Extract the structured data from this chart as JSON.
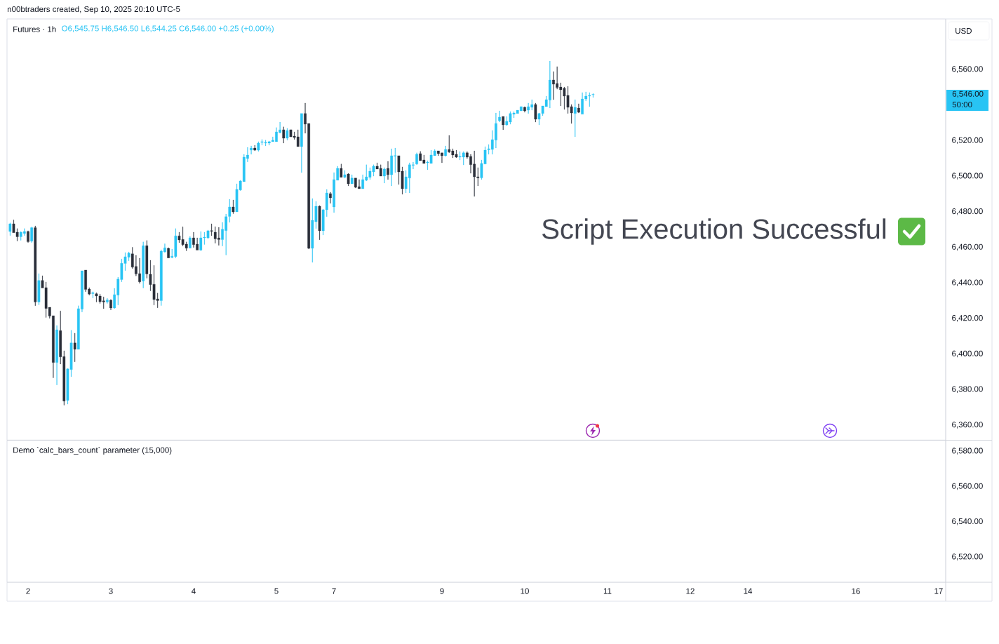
{
  "chart_data": [
    {
      "type": "candlestick",
      "title": "Futures · 1h",
      "subtitle": "O6,545.75 H6,546.50 L6,544.25 C6,546.00 +0.25 (+0.00%)",
      "ylabel": "USD",
      "annotations": [
        "n00btraders created, Sep 10, 2025 20:10 UTC-5",
        "Script Execution Successful",
        "6,546.00",
        "50:00"
      ],
      "categories": [
        null,
        null,
        null,
        null,
        null,
        "2",
        null,
        null,
        null,
        null,
        null,
        null,
        null,
        null,
        null,
        null,
        null,
        null,
        null,
        null,
        null,
        null,
        null,
        null,
        null,
        null,
        null,
        null,
        "3",
        null,
        null,
        null,
        null,
        null,
        null,
        null,
        null,
        null,
        null,
        null,
        null,
        null,
        null,
        null,
        null,
        null,
        null,
        null,
        null,
        null,
        null,
        "4",
        null,
        null,
        null,
        null,
        null,
        null,
        null,
        null,
        null,
        null,
        null,
        null,
        null,
        null,
        null,
        null,
        null,
        null,
        null,
        null,
        null,
        null,
        "5",
        null,
        null,
        null,
        null,
        null,
        null,
        null,
        null,
        null,
        null,
        null,
        null,
        null,
        null,
        null,
        "7",
        null,
        null,
        null,
        null,
        null,
        null,
        null,
        null,
        null,
        null,
        null,
        null,
        null,
        null,
        null,
        null,
        null,
        null,
        null,
        null,
        null,
        null,
        null,
        null,
        null,
        null,
        null,
        null,
        null,
        "9",
        null,
        null,
        null,
        null,
        null,
        null,
        null,
        null,
        null,
        null,
        null,
        null,
        null,
        null,
        null,
        null,
        null,
        null,
        null,
        null,
        null,
        null,
        "10",
        null,
        null,
        null,
        null,
        null,
        null,
        null,
        null,
        null,
        null,
        null,
        null,
        null,
        null,
        null,
        null,
        null,
        null,
        null,
        null,
        null,
        null,
        "11",
        null,
        null,
        null,
        null,
        null,
        null,
        null,
        null,
        null,
        null,
        null,
        null,
        null,
        null,
        null,
        null,
        null,
        null,
        null,
        null,
        null,
        null,
        "12",
        null,
        null,
        null,
        null,
        null,
        null,
        null,
        null,
        null,
        null,
        null,
        null,
        null,
        null,
        null,
        "14",
        null,
        null,
        null,
        null,
        null,
        null,
        null,
        null,
        null,
        null,
        null,
        null,
        null,
        null,
        null,
        null,
        null,
        null,
        null,
        null,
        null,
        null,
        null,
        null,
        null,
        null,
        null,
        null,
        null,
        "16",
        null,
        null,
        null,
        null,
        null,
        null,
        null,
        null,
        null,
        null,
        null,
        null,
        null,
        null,
        null,
        null,
        null,
        null,
        null,
        null,
        null,
        null,
        "17"
      ],
      "ohlc": [
        [
          6468.9,
          6473.7,
          6466.6,
          6473.2
        ],
        [
          6473.2,
          6475.4,
          6468.2,
          6468.2
        ],
        [
          6468.5,
          6470.5,
          6463.5,
          6465.9
        ],
        [
          6465.9,
          6468.9,
          6463.9,
          6468.5
        ],
        [
          6467.8,
          6470.5,
          6466.6,
          6468.9
        ],
        [
          6468.9,
          6469.3,
          6462.7,
          6463.1
        ],
        [
          6463.4,
          6471.4,
          6462.7,
          6471.0
        ],
        [
          6471.0,
          6472.0,
          6427.1,
          6429.2
        ],
        [
          6429.2,
          6445.2,
          6427.6,
          6441.3
        ],
        [
          6441.3,
          6444.0,
          6437.1,
          6437.1
        ],
        [
          6437.3,
          6440.5,
          6420.5,
          6425.6
        ],
        [
          6426.3,
          6426.3,
          6420.0,
          6421.3
        ],
        [
          6421.5,
          6421.5,
          6386.6,
          6395.2
        ],
        [
          6395.2,
          6416.0,
          6382.6,
          6413.6
        ],
        [
          6413.1,
          6424.2,
          6394.3,
          6398.3
        ],
        [
          6398.5,
          6401.8,
          6371.2,
          6373.5
        ],
        [
          6373.9,
          6391.8,
          6371.8,
          6391.6
        ],
        [
          6391.2,
          6413.3,
          6387.2,
          6406.2
        ],
        [
          6406.2,
          6411.7,
          6395.6,
          6402.6
        ],
        [
          6402.6,
          6427.1,
          6402.6,
          6425.5
        ],
        [
          6425.2,
          6446.8,
          6423.6,
          6446.8
        ],
        [
          6447.2,
          6447.2,
          6435.0,
          6436.3
        ],
        [
          6436.5,
          6437.3,
          6433.1,
          6433.7
        ],
        [
          6434.0,
          6435.0,
          6431.5,
          6434.4
        ],
        [
          6433.9,
          6434.4,
          6429.2,
          6432.6
        ],
        [
          6432.6,
          6433.7,
          6428.4,
          6429.4
        ],
        [
          6429.9,
          6432.1,
          6425.5,
          6429.2
        ],
        [
          6429.2,
          6431.3,
          6428.4,
          6430.4
        ],
        [
          6430.2,
          6430.7,
          6424.8,
          6425.9
        ],
        [
          6425.9,
          6436.9,
          6425.5,
          6433.4
        ],
        [
          6433.1,
          6443.2,
          6427.5,
          6442.1
        ],
        [
          6441.8,
          6453.4,
          6440.6,
          6451.0
        ],
        [
          6450.9,
          6457.0,
          6446.9,
          6454.7
        ],
        [
          6454.4,
          6457.4,
          6452.4,
          6456.7
        ],
        [
          6456.3,
          6460.0,
          6448.1,
          6448.8
        ],
        [
          6449.2,
          6455.5,
          6443.9,
          6445.0
        ],
        [
          6445.2,
          6453.9,
          6439.7,
          6440.6
        ],
        [
          6441.0,
          6463.0,
          6437.1,
          6460.9
        ],
        [
          6460.9,
          6463.8,
          6442.6,
          6445.0
        ],
        [
          6444.8,
          6452.7,
          6435.5,
          6439.0
        ],
        [
          6439.2,
          6449.8,
          6427.5,
          6430.6
        ],
        [
          6431.0,
          6434.2,
          6426.0,
          6430.0
        ],
        [
          6430.0,
          6458.6,
          6427.2,
          6457.8
        ],
        [
          6457.4,
          6462.0,
          6457.0,
          6459.7
        ],
        [
          6459.4,
          6459.8,
          6454.0,
          6454.0
        ],
        [
          6454.3,
          6459.0,
          6453.9,
          6455.0
        ],
        [
          6454.8,
          6470.5,
          6454.0,
          6466.4
        ],
        [
          6466.4,
          6468.5,
          6462.6,
          6464.1
        ],
        [
          6464.4,
          6471.5,
          6460.7,
          6461.5
        ],
        [
          6461.8,
          6463.0,
          6458.0,
          6459.5
        ],
        [
          6459.5,
          6466.1,
          6459.5,
          6465.3
        ],
        [
          6465.3,
          6468.5,
          6459.9,
          6461.5
        ],
        [
          6461.8,
          6465.3,
          6458.4,
          6458.4
        ],
        [
          6458.4,
          6468.9,
          6458.0,
          6465.3
        ],
        [
          6465.3,
          6468.5,
          6461.6,
          6465.7
        ],
        [
          6465.3,
          6469.7,
          6464.7,
          6469.3
        ],
        [
          6469.4,
          6473.2,
          6466.5,
          6469.0
        ],
        [
          6468.5,
          6471.6,
          6462.3,
          6464.7
        ],
        [
          6465.3,
          6471.2,
          6461.1,
          6464.3
        ],
        [
          6464.3,
          6474.0,
          6460.7,
          6470.1
        ],
        [
          6469.4,
          6478.7,
          6455.6,
          6477.2
        ],
        [
          6477.3,
          6487.0,
          6474.0,
          6482.7
        ],
        [
          6482.7,
          6486.6,
          6478.9,
          6479.9
        ],
        [
          6479.9,
          6495.7,
          6479.9,
          6492.5
        ],
        [
          6492.2,
          6497.7,
          6491.8,
          6497.3
        ],
        [
          6496.9,
          6512.3,
          6496.9,
          6510.7
        ],
        [
          6509.9,
          6516.2,
          6508.0,
          6511.9
        ],
        [
          6514.6,
          6517.0,
          6512.3,
          6515.8
        ],
        [
          6515.8,
          6517.4,
          6514.2,
          6514.6
        ],
        [
          6514.6,
          6519.4,
          6513.9,
          6518.6
        ],
        [
          6519.0,
          6520.6,
          6517.4,
          6519.4
        ],
        [
          6518.6,
          6520.2,
          6517.0,
          6519.0
        ],
        [
          6518.6,
          6519.8,
          6517.4,
          6519.4
        ],
        [
          6519.4,
          6522.1,
          6519.4,
          6520.2
        ],
        [
          6519.4,
          6527.3,
          6519.4,
          6524.9
        ],
        [
          6524.5,
          6530.4,
          6524.1,
          6526.1
        ],
        [
          6526.1,
          6527.7,
          6518.6,
          6521.3
        ],
        [
          6521.3,
          6526.9,
          6520.2,
          6525.7
        ],
        [
          6526.1,
          6526.1,
          6522.1,
          6522.1
        ],
        [
          6522.5,
          6524.9,
          6520.6,
          6521.7
        ],
        [
          6522.1,
          6526.1,
          6516.6,
          6516.6
        ],
        [
          6516.6,
          6535.2,
          6502.0,
          6535.2
        ],
        [
          6535.2,
          6541.1,
          6524.1,
          6529.2
        ],
        [
          6529.6,
          6529.6,
          6459.0,
          6459.4
        ],
        [
          6459.4,
          6487.4,
          6451.5,
          6475.2
        ],
        [
          6474.4,
          6485.8,
          6470.5,
          6483.1
        ],
        [
          6483.1,
          6483.5,
          6464.2,
          6469.3
        ],
        [
          6469.3,
          6481.5,
          6466.9,
          6481.1
        ],
        [
          6481.1,
          6492.5,
          6477.2,
          6490.6
        ],
        [
          6490.2,
          6491.0,
          6484.7,
          6487.8
        ],
        [
          6482.7,
          6502.0,
          6479.5,
          6498.1
        ],
        [
          6497.7,
          6505.6,
          6497.7,
          6504.4
        ],
        [
          6504.4,
          6506.8,
          6499.3,
          6499.3
        ],
        [
          6499.3,
          6503.2,
          6498.9,
          6500.8
        ],
        [
          6501.2,
          6501.6,
          6494.5,
          6495.7
        ],
        [
          6495.7,
          6500.8,
          6495.7,
          6498.9
        ],
        [
          6498.9,
          6498.9,
          6493.3,
          6493.7
        ],
        [
          6494.1,
          6498.1,
          6492.9,
          6492.9
        ],
        [
          6492.9,
          6500.8,
          6492.9,
          6498.1
        ],
        [
          6497.7,
          6506.4,
          6497.3,
          6499.6
        ],
        [
          6499.3,
          6504.8,
          6498.1,
          6502.8
        ],
        [
          6502.4,
          6506.4,
          6500.0,
          6505.6
        ],
        [
          6505.6,
          6507.5,
          6504.0,
          6504.0
        ],
        [
          6504.4,
          6506.4,
          6500.0,
          6500.0
        ],
        [
          6500.0,
          6504.8,
          6496.1,
          6504.0
        ],
        [
          6504.4,
          6508.3,
          6498.1,
          6500.8
        ],
        [
          6500.8,
          6515.4,
          6494.5,
          6511.5
        ],
        [
          6511.2,
          6515.8,
          6502.0,
          6511.6
        ],
        [
          6511.5,
          6511.5,
          6495.3,
          6502.4
        ],
        [
          6502.8,
          6505.2,
          6489.8,
          6492.9
        ],
        [
          6492.9,
          6503.2,
          6490.6,
          6499.6
        ],
        [
          6498.9,
          6507.5,
          6490.6,
          6506.4
        ],
        [
          6506.0,
          6507.9,
          6504.0,
          6506.4
        ],
        [
          6506.8,
          6513.1,
          6506.4,
          6512.3
        ],
        [
          6512.7,
          6513.9,
          6508.7,
          6508.7
        ],
        [
          6509.1,
          6511.9,
          6507.1,
          6507.1
        ],
        [
          6507.5,
          6508.7,
          6503.6,
          6507.9
        ],
        [
          6507.1,
          6514.6,
          6507.1,
          6511.9
        ],
        [
          6511.5,
          6515.0,
          6511.5,
          6514.2
        ],
        [
          6514.2,
          6514.2,
          6511.5,
          6512.7
        ],
        [
          6513.1,
          6513.1,
          6507.5,
          6511.5
        ],
        [
          6511.5,
          6517.0,
          6511.1,
          6515.0
        ],
        [
          6515.0,
          6522.9,
          6513.1,
          6513.5
        ],
        [
          6514.2,
          6515.4,
          6510.3,
          6511.9
        ],
        [
          6512.3,
          6514.6,
          6510.3,
          6510.7
        ],
        [
          6510.7,
          6513.8,
          6509.1,
          6511.1
        ],
        [
          6510.7,
          6513.8,
          6506.3,
          6513.1
        ],
        [
          6513.1,
          6513.8,
          6509.9,
          6510.7
        ],
        [
          6511.1,
          6512.3,
          6501.6,
          6506.4
        ],
        [
          6506.8,
          6514.2,
          6488.6,
          6499.6
        ],
        [
          6499.6,
          6504.8,
          6494.5,
          6499.0
        ],
        [
          6499.0,
          6509.1,
          6498.1,
          6507.1
        ],
        [
          6506.8,
          6516.6,
          6506.8,
          6514.6
        ],
        [
          6514.8,
          6517.8,
          6512.3,
          6515.4
        ],
        [
          6515.0,
          6525.7,
          6512.3,
          6520.5
        ],
        [
          6520.2,
          6535.5,
          6515.8,
          6529.6
        ],
        [
          6531.2,
          6536.7,
          6530.4,
          6533.2
        ],
        [
          6533.6,
          6533.6,
          6526.1,
          6528.8
        ],
        [
          6528.8,
          6533.6,
          6528.4,
          6530.8
        ],
        [
          6530.4,
          6536.3,
          6529.2,
          6535.2
        ],
        [
          6534.8,
          6536.3,
          6532.8,
          6535.5
        ],
        [
          6535.2,
          6537.1,
          6535.2,
          6537.1
        ],
        [
          6536.7,
          6539.1,
          6536.7,
          6539.1
        ],
        [
          6538.7,
          6539.1,
          6535.9,
          6536.7
        ],
        [
          6537.1,
          6541.1,
          6535.2,
          6539.1
        ],
        [
          6538.7,
          6543.0,
          6537.1,
          6540.3
        ],
        [
          6540.3,
          6541.1,
          6530.4,
          6532.0
        ],
        [
          6532.0,
          6535.5,
          6528.8,
          6535.2
        ],
        [
          6535.2,
          6539.5,
          6534.0,
          6539.5
        ],
        [
          6539.1,
          6545.0,
          6539.1,
          6543.0
        ],
        [
          6542.7,
          6564.7,
          6538.3,
          6554.1
        ],
        [
          6554.1,
          6558.8,
          6543.0,
          6551.7
        ],
        [
          6552.1,
          6561.6,
          6548.9,
          6549.8
        ],
        [
          6550.1,
          6552.5,
          6539.5,
          6548.6
        ],
        [
          6549.4,
          6550.1,
          6537.5,
          6545.0
        ],
        [
          6545.4,
          6550.5,
          6535.2,
          6538.7
        ],
        [
          6539.1,
          6540.3,
          6529.6,
          6535.5
        ],
        [
          6535.2,
          6543.0,
          6522.1,
          6538.7
        ],
        [
          6538.3,
          6540.7,
          6535.5,
          6535.9
        ],
        [
          6534.8,
          6547.0,
          6534.8,
          6543.4
        ],
        [
          6543.4,
          6547.4,
          6542.3,
          6545.0
        ],
        [
          6545.0,
          6547.0,
          6539.1,
          6545.4
        ],
        [
          6545.75,
          6546.5,
          6544.25,
          6546.0
        ],
        null,
        null,
        null,
        null,
        null,
        null,
        null,
        null,
        null,
        null,
        null,
        null,
        null,
        null,
        null,
        null,
        null,
        null,
        null,
        null,
        null,
        null,
        null,
        null,
        null,
        null,
        null,
        null,
        null,
        null,
        null,
        null,
        null,
        null,
        null,
        null,
        null,
        null,
        null,
        null,
        null,
        null,
        null,
        null,
        null,
        null,
        null,
        null,
        null,
        null,
        null,
        null,
        null,
        null,
        null,
        null,
        null,
        null,
        null,
        null,
        null,
        null,
        null,
        null,
        null,
        null,
        null,
        null,
        null,
        null,
        null,
        null,
        null,
        null,
        null,
        null,
        null,
        null,
        null,
        null,
        null,
        null,
        null,
        null,
        null,
        null,
        null,
        null,
        null,
        null,
        null,
        null,
        null,
        null,
        null,
        null
      ],
      "colors": [
        "#28c4f4",
        "#2a2e39",
        "#2a2e39",
        "#28c4f4",
        "#28c4f4",
        "#2a2e39",
        "#28c4f4",
        "#2a2e39",
        "#28c4f4",
        "#2a2e39",
        "#2a2e39",
        "#2a2e39",
        "#2a2e39",
        "#28c4f4",
        "#2a2e39",
        "#2a2e39",
        "#28c4f4",
        "#28c4f4",
        "#2a2e39",
        "#28c4f4",
        "#28c4f4",
        "#2a2e39",
        "#2a2e39",
        "#28c4f4",
        "#2a2e39",
        "#2a2e39",
        "#2a2e39",
        "#28c4f4",
        "#2a2e39",
        "#28c4f4",
        "#28c4f4",
        "#28c4f4",
        "#28c4f4",
        "#28c4f4",
        "#2a2e39",
        "#2a2e39",
        "#2a2e39",
        "#28c4f4",
        "#2a2e39",
        "#2a2e39",
        "#2a2e39",
        "#2a2e39",
        "#28c4f4",
        "#28c4f4",
        "#2a2e39",
        "#28c4f4",
        "#28c4f4",
        "#2a2e39",
        "#2a2e39",
        "#2a2e39",
        "#28c4f4",
        "#2a2e39",
        "#2a2e39",
        "#28c4f4",
        "#28c4f4",
        "#28c4f4",
        "#2a2e39",
        "#2a2e39",
        "#2a2e39",
        "#28c4f4",
        "#28c4f4",
        "#28c4f4",
        "#2a2e39",
        "#28c4f4",
        "#28c4f4",
        "#28c4f4",
        "#28c4f4",
        "#28c4f4",
        "#2a2e39",
        "#28c4f4",
        "#28c4f4",
        "#28c4f4",
        "#28c4f4",
        "#28c4f4",
        "#28c4f4",
        "#28c4f4",
        "#2a2e39",
        "#28c4f4",
        "#2a2e39",
        "#2a2e39",
        "#2a2e39",
        "#28c4f4",
        "#2a2e39",
        "#2a2e39",
        "#28c4f4",
        "#28c4f4",
        "#2a2e39",
        "#28c4f4",
        "#28c4f4",
        "#2a2e39",
        "#28c4f4",
        "#28c4f4",
        "#2a2e39",
        "#28c4f4",
        "#2a2e39",
        "#28c4f4",
        "#2a2e39",
        "#2a2e39",
        "#28c4f4",
        "#28c4f4",
        "#28c4f4",
        "#28c4f4",
        "#2a2e39",
        "#2a2e39",
        "#28c4f4",
        "#2a2e39",
        "#28c4f4",
        "#28c4f4",
        "#2a2e39",
        "#2a2e39",
        "#28c4f4",
        "#28c4f4",
        "#28c4f4",
        "#28c4f4",
        "#2a2e39",
        "#2a2e39",
        "#28c4f4",
        "#28c4f4",
        "#28c4f4",
        "#2a2e39",
        "#2a2e39",
        "#28c4f4",
        "#2a2e39",
        "#2a2e39",
        "#2a2e39",
        "#28c4f4",
        "#28c4f4",
        "#2a2e39",
        "#2a2e39",
        "#2a2e39",
        "#2a2e39",
        "#28c4f4",
        "#28c4f4",
        "#28c4f4",
        "#28c4f4",
        "#28c4f4",
        "#28c4f4",
        "#2a2e39",
        "#28c4f4",
        "#28c4f4",
        "#28c4f4",
        "#28c4f4",
        "#28c4f4",
        "#2a2e39",
        "#28c4f4",
        "#28c4f4",
        "#2a2e39",
        "#28c4f4",
        "#28c4f4",
        "#28c4f4",
        "#28c4f4",
        "#2a2e39",
        "#2a2e39",
        "#2a2e39",
        "#2a2e39",
        "#2a2e39",
        "#2a2e39",
        "#28c4f4",
        "#2a2e39",
        "#28c4f4",
        "#28c4f4",
        "#28c4f4",
        "#28c4f4",
        null,
        null,
        null,
        null,
        null,
        null,
        null,
        null,
        null,
        null,
        null,
        null,
        null,
        null,
        null,
        null,
        null,
        null,
        null,
        null,
        null,
        null,
        null,
        null,
        null,
        null,
        null,
        null,
        null,
        null,
        null,
        null,
        null,
        null,
        null,
        null,
        null,
        null,
        null,
        null,
        null,
        null,
        null,
        null,
        null,
        null,
        null,
        null,
        null,
        null,
        null,
        null,
        null,
        null,
        null,
        null,
        null,
        null,
        null,
        null,
        null,
        null,
        null,
        null,
        null,
        null,
        null,
        null,
        null,
        null,
        null,
        null,
        null,
        null,
        null,
        null,
        null,
        null,
        null,
        null,
        null,
        null,
        null,
        null,
        null,
        null,
        null,
        null,
        null,
        null,
        null,
        null,
        null,
        null,
        null,
        null
      ],
      "ylim": [
        6351.7,
        6588.4
      ],
      "yticks": [
        {
          "value": 6360,
          "label": "6,360.00"
        },
        {
          "value": 6380,
          "label": "6,380.00"
        },
        {
          "value": 6400,
          "label": "6,400.00"
        },
        {
          "value": 6420,
          "label": "6,420.00"
        },
        {
          "value": 6440,
          "label": "6,440.00"
        },
        {
          "value": 6460,
          "label": "6,460.00"
        },
        {
          "value": 6480,
          "label": "6,480.00"
        },
        {
          "value": 6500,
          "label": "6,500.00"
        },
        {
          "value": 6520,
          "label": "6,520.00"
        },
        {
          "value": 6560,
          "label": "6,560.00"
        }
      ],
      "tick_labels": "y"
    },
    {
      "type": "line",
      "title": "Demo `calc_bars_count` parameter (15,000)",
      "categories": [
        null,
        null,
        null,
        null,
        null,
        "2",
        null,
        null,
        null,
        null,
        null,
        null,
        null,
        null,
        null,
        null,
        null,
        null,
        null,
        null,
        null,
        null,
        null,
        null,
        null,
        null,
        null,
        null,
        "3",
        null,
        null,
        null,
        null,
        null,
        null,
        null,
        null,
        null,
        null,
        null,
        null,
        null,
        null,
        null,
        null,
        null,
        null,
        null,
        null,
        null,
        null,
        "4",
        null,
        null,
        null,
        null,
        null,
        null,
        null,
        null,
        null,
        null,
        null,
        null,
        null,
        null,
        null,
        null,
        null,
        null,
        null,
        null,
        null,
        null,
        "5",
        null,
        null,
        null,
        null,
        null,
        null,
        null,
        null,
        null,
        null,
        null,
        null,
        null,
        null,
        null,
        "7",
        null,
        null,
        null,
        null,
        null,
        null,
        null,
        null,
        null,
        null,
        null,
        null,
        null,
        null,
        null,
        null,
        null,
        null,
        null,
        null,
        null,
        null,
        null,
        null,
        null,
        null,
        null,
        null,
        null,
        "9",
        null,
        null,
        null,
        null,
        null,
        null,
        null,
        null,
        null,
        null,
        null,
        null,
        null,
        null,
        null,
        null,
        null,
        null,
        null,
        null,
        null,
        null,
        "10",
        null,
        null,
        null,
        null,
        null,
        null,
        null,
        null,
        null,
        null,
        null,
        null,
        null,
        null,
        null,
        null,
        null,
        null,
        null,
        null,
        null,
        null,
        "11",
        null,
        null,
        null,
        null,
        null,
        null,
        null,
        null,
        null,
        null,
        null,
        null,
        null,
        null,
        null,
        null,
        null,
        null,
        null,
        null,
        null,
        null,
        "12",
        null,
        null,
        null,
        null,
        null,
        null,
        null,
        null,
        null,
        null,
        null,
        null,
        null,
        null,
        null,
        "14",
        null,
        null,
        null,
        null,
        null,
        null,
        null,
        null,
        null,
        null,
        null,
        null,
        null,
        null,
        null,
        null,
        null,
        null,
        null,
        null,
        null,
        null,
        null,
        null,
        null,
        null,
        null,
        null,
        null,
        "16",
        null,
        null,
        null,
        null,
        null,
        null,
        null,
        null,
        null,
        null,
        null,
        null,
        null,
        null,
        null,
        null,
        null,
        null,
        null,
        null,
        null,
        null,
        "17"
      ],
      "values": [
        null,
        null,
        null,
        null,
        null,
        null,
        null,
        null,
        null,
        null,
        null,
        null,
        null,
        null,
        null,
        null,
        null,
        null,
        null,
        null,
        null,
        null,
        null,
        null,
        null,
        null,
        null,
        null,
        null,
        null,
        null,
        null,
        null,
        null,
        null,
        null,
        null,
        null,
        null,
        null,
        null,
        null,
        null,
        null,
        null,
        null,
        null,
        null,
        null,
        null,
        null,
        null,
        null,
        null,
        null,
        null,
        null,
        null,
        null,
        null,
        null,
        null,
        null,
        null,
        null,
        null,
        null,
        null,
        null,
        null,
        null,
        null,
        null,
        null,
        null,
        null,
        null,
        null,
        null,
        null,
        null,
        null,
        null,
        null,
        null,
        null,
        null,
        null,
        null,
        null,
        null,
        null,
        null,
        null,
        null,
        null,
        null,
        null,
        null,
        null,
        null,
        null,
        null,
        null,
        null,
        null,
        null,
        null,
        null,
        null,
        null,
        null,
        null,
        null,
        null,
        null,
        null,
        null,
        null,
        null,
        null,
        null,
        null,
        null,
        null,
        null,
        null,
        null,
        null,
        null,
        null,
        null,
        null,
        null,
        null,
        null,
        null,
        null,
        null,
        null,
        null,
        null,
        null,
        null,
        null,
        null,
        null,
        null,
        null,
        null,
        null,
        null,
        null,
        null,
        null,
        null,
        null,
        null,
        null,
        null,
        null,
        null,
        null,
        null,
        null,
        null,
        null,
        null,
        null,
        null,
        null,
        null,
        null,
        null,
        null,
        null,
        null,
        null,
        null,
        null,
        null,
        null,
        null,
        null,
        null,
        null,
        null,
        null,
        null,
        null,
        null,
        null,
        null,
        null,
        null,
        null,
        null,
        null,
        null,
        null,
        null,
        null,
        null,
        null,
        null,
        null,
        null,
        null,
        null,
        null,
        null,
        null,
        null,
        null,
        null,
        null,
        null,
        null,
        null,
        null,
        null,
        null,
        null,
        null,
        null,
        null,
        null,
        null,
        null,
        null,
        null,
        null,
        null,
        null,
        null,
        null,
        null,
        null,
        null,
        null,
        null,
        null,
        null,
        null,
        null,
        null,
        null,
        null,
        null,
        null,
        null,
        null,
        null,
        null,
        null,
        null,
        null,
        null,
        null
      ],
      "ylim": [
        6505.7,
        6586.0
      ],
      "yticks": [
        {
          "value": 6520,
          "label": "6,520.00"
        },
        {
          "value": 6540,
          "label": "6,540.00"
        },
        {
          "value": 6560,
          "label": "6,560.00"
        },
        {
          "value": 6580,
          "label": "6,580.00"
        }
      ]
    }
  ]
}
